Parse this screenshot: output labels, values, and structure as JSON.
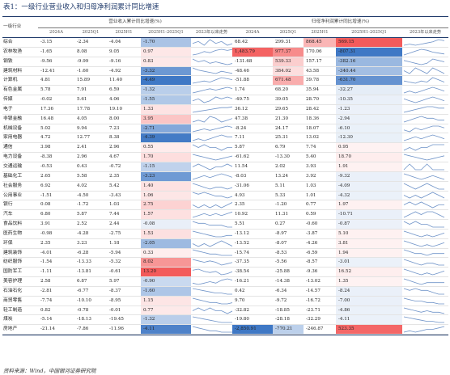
{
  "title": "表1：一级行业营业收入和归母净利润累计同比增速",
  "source": "资料来源：Wind，中国银河证券研究院",
  "header": {
    "industry_label": "一级行业",
    "group1_label": "营业收入累计同比增速(%)",
    "group2_label": "归母净利润累计同比增速(%)",
    "columns": [
      "2024A",
      "2025Q1",
      "2025H1",
      "2025H1-2025Q1",
      "2023年以来走势"
    ]
  },
  "colors": {
    "line": "#1f3a6b",
    "spark": "#6f93c8",
    "pos_strong": "#f35b5b",
    "neg_strong": "#3f78c5"
  },
  "rows": [
    {
      "name": "综合",
      "r": [
        "-3.15",
        "-2.34",
        "-4.04",
        "-1.70"
      ],
      "p": [
        "68.42",
        "299.31",
        "868.45",
        "569.15"
      ],
      "rd": -1.7,
      "pd": 569.15
    },
    {
      "name": "农林牧渔",
      "r": [
        "-1.65",
        "8.08",
        "9.05",
        "0.97"
      ],
      "p": [
        "1,483.79",
        "977.37",
        "170.06",
        "-807.31"
      ],
      "rd": 0.97,
      "pd": -807.31
    },
    {
      "name": "钢铁",
      "r": [
        "-9.56",
        "-9.99",
        "-9.16",
        "0.83"
      ],
      "p": [
        "-131.68",
        "539.33",
        "157.17",
        "-382.16"
      ],
      "rd": 0.83,
      "pd": -382.16
    },
    {
      "name": "建筑材料",
      "r": [
        "-12.41",
        "-1.60",
        "-4.92",
        "-3.32"
      ],
      "p": [
        "-48.46",
        "384.02",
        "43.58",
        "-340.44"
      ],
      "rd": -3.32,
      "pd": -340.44
    },
    {
      "name": "计算机",
      "r": [
        "4.81",
        "15.89",
        "11.40",
        "-4.49"
      ],
      "p": [
        "-51.88",
        "671.48",
        "39.78",
        "-631.70"
      ],
      "rd": -4.49,
      "pd": -631.7
    },
    {
      "name": "有色金属",
      "r": [
        "5.78",
        "7.91",
        "6.59",
        "-1.32"
      ],
      "p": [
        "1.74",
        "68.20",
        "35.94",
        "-32.27"
      ],
      "rd": -1.32,
      "pd": -32.27
    },
    {
      "name": "传媒",
      "r": [
        "-0.02",
        "5.61",
        "4.06",
        "-1.55"
      ],
      "p": [
        "-49.75",
        "39.05",
        "28.70",
        "-10.35"
      ],
      "rd": -1.55,
      "pd": -10.35
    },
    {
      "name": "电子",
      "r": [
        "17.36",
        "17.78",
        "19.10",
        "1.33"
      ],
      "p": [
        "36.12",
        "29.65",
        "28.42",
        "-1.23"
      ],
      "rd": 1.33,
      "pd": -1.23
    },
    {
      "name": "非银金融",
      "r": [
        "16.48",
        "4.05",
        "8.00",
        "3.95"
      ],
      "p": [
        "47.38",
        "21.30",
        "18.36",
        "-2.94"
      ],
      "rd": 3.95,
      "pd": -2.94
    },
    {
      "name": "机械设备",
      "r": [
        "5.02",
        "9.94",
        "7.23",
        "-2.71"
      ],
      "p": [
        "-8.24",
        "24.17",
        "18.07",
        "-6.10"
      ],
      "rd": -2.71,
      "pd": -6.1
    },
    {
      "name": "家用电器",
      "r": [
        "4.72",
        "12.77",
        "8.38",
        "-4.39"
      ],
      "p": [
        "7.11",
        "25.31",
        "13.02",
        "-12.30"
      ],
      "rd": -4.39,
      "pd": -12.3
    },
    {
      "name": "通信",
      "r": [
        "3.98",
        "2.41",
        "2.96",
        "0.55"
      ],
      "p": [
        "5.87",
        "6.79",
        "7.74",
        "0.95"
      ],
      "rd": 0.55,
      "pd": 0.95
    },
    {
      "name": "电力设备",
      "r": [
        "-8.38",
        "2.96",
        "4.67",
        "1.70"
      ],
      "p": [
        "-61.62",
        "-13.30",
        "5.40",
        "18.70"
      ],
      "rd": 1.7,
      "pd": 18.7
    },
    {
      "name": "交通运输",
      "r": [
        "-0.53",
        "0.43",
        "-0.72",
        "-1.15"
      ],
      "p": [
        "11.54",
        "2.02",
        "3.93",
        "1.91"
      ],
      "rd": -1.15,
      "pd": 1.91
    },
    {
      "name": "基础化工",
      "r": [
        "2.65",
        "5.58",
        "2.35",
        "-3.23"
      ],
      "p": [
        "-8.03",
        "13.24",
        "3.92",
        "-9.32"
      ],
      "rd": -3.23,
      "pd": -9.32
    },
    {
      "name": "社会服务",
      "r": [
        "6.92",
        "4.02",
        "5.42",
        "1.40"
      ],
      "p": [
        "-31.06",
        "5.11",
        "1.03",
        "-4.09"
      ],
      "rd": 1.4,
      "pd": -4.09
    },
    {
      "name": "公用事业",
      "r": [
        "-1.51",
        "-4.50",
        "-3.43",
        "1.06"
      ],
      "p": [
        "4.93",
        "5.33",
        "1.01",
        "-4.32"
      ],
      "rd": 1.06,
      "pd": -4.32
    },
    {
      "name": "银行",
      "r": [
        "0.08",
        "-1.72",
        "1.03",
        "2.75"
      ],
      "p": [
        "2.35",
        "-1.20",
        "0.77",
        "1.97"
      ],
      "rd": 2.75,
      "pd": 1.97
    },
    {
      "name": "汽车",
      "r": [
        "6.80",
        "5.87",
        "7.44",
        "1.57"
      ],
      "p": [
        "10.92",
        "11.31",
        "0.59",
        "-10.71"
      ],
      "rd": 1.57,
      "pd": -10.71
    },
    {
      "name": "食品饮料",
      "r": [
        "3.91",
        "2.52",
        "2.44",
        "-0.08"
      ],
      "p": [
        "5.51",
        "0.27",
        "-0.60",
        "-0.87"
      ],
      "rd": -0.08,
      "pd": -0.87
    },
    {
      "name": "医药生物",
      "r": [
        "-0.98",
        "-4.28",
        "-2.75",
        "1.53"
      ],
      "p": [
        "-13.12",
        "-8.97",
        "-3.87",
        "5.10"
      ],
      "rd": 1.53,
      "pd": 5.1
    },
    {
      "name": "环保",
      "r": [
        "2.35",
        "3.23",
        "1.18",
        "-2.05"
      ],
      "p": [
        "-13.52",
        "-8.07",
        "-4.26",
        "3.81"
      ],
      "rd": -2.05,
      "pd": 3.81
    },
    {
      "name": "建筑装饰",
      "r": [
        "-4.01",
        "-6.28",
        "-5.94",
        "0.33"
      ],
      "p": [
        "-15.74",
        "-8.53",
        "-6.59",
        "1.94"
      ],
      "rd": 0.33,
      "pd": 1.94
    },
    {
      "name": "纺织服饰",
      "r": [
        "-1.54",
        "-13.33",
        "-5.32",
        "8.02"
      ],
      "p": [
        "-37.35",
        "-5.56",
        "-8.57",
        "-3.01"
      ],
      "rd": 8.02,
      "pd": -3.01
    },
    {
      "name": "国防军工",
      "r": [
        "-1.11",
        "-13.81",
        "-0.61",
        "13.20"
      ],
      "p": [
        "-38.54",
        "-25.88",
        "-9.36",
        "16.52"
      ],
      "rd": 13.2,
      "pd": 16.52
    },
    {
      "name": "美容护理",
      "r": [
        "2.58",
        "6.87",
        "5.97",
        "-0.90"
      ],
      "p": [
        "-16.21",
        "-14.38",
        "-13.02",
        "1.35"
      ],
      "rd": -0.9,
      "pd": 1.35
    },
    {
      "name": "石油石化",
      "r": [
        "-2.81",
        "-6.77",
        "-8.37",
        "-1.60"
      ],
      "p": [
        "0.42",
        "-6.34",
        "-14.57",
        "-8.24"
      ],
      "rd": -1.6,
      "pd": -8.24
    },
    {
      "name": "商贸零售",
      "r": [
        "-7.74",
        "-10.10",
        "-8.95",
        "1.15"
      ],
      "p": [
        "9.70",
        "-9.72",
        "-16.72",
        "-7.00"
      ],
      "rd": 1.15,
      "pd": -7.0
    },
    {
      "name": "轻工制造",
      "r": [
        "0.82",
        "-0.78",
        "-0.01",
        "0.77"
      ],
      "p": [
        "-32.82",
        "-18.85",
        "-23.71",
        "-4.86"
      ],
      "rd": 0.77,
      "pd": -4.86
    },
    {
      "name": "煤炭",
      "r": [
        "-5.14",
        "-18.13",
        "-19.45",
        "-1.32"
      ],
      "p": [
        "-19.80",
        "-28.18",
        "-32.29",
        "-4.11"
      ],
      "rd": -1.32,
      "pd": -4.11
    },
    {
      "name": "房地产",
      "r": [
        "-21.14",
        "-7.86",
        "-11.96",
        "-4.11"
      ],
      "p": [
        "-2,850.91",
        "-770.21",
        "-246.87",
        "523.35"
      ],
      "rd": -4.11,
      "pd": 523.35
    }
  ],
  "sparklines": {
    "revenue": [
      [
        2,
        3,
        1,
        4,
        2,
        3,
        1,
        2
      ],
      [
        1,
        2,
        4,
        3,
        5,
        6,
        5,
        6
      ],
      [
        5,
        3,
        4,
        2,
        3,
        2,
        1,
        2
      ],
      [
        6,
        4,
        3,
        2,
        1,
        3,
        2,
        1
      ],
      [
        2,
        3,
        4,
        3,
        5,
        7,
        6,
        5
      ],
      [
        2,
        3,
        4,
        5,
        4,
        5,
        6,
        5
      ],
      [
        3,
        4,
        2,
        3,
        5,
        4,
        5,
        4
      ],
      [
        1,
        2,
        3,
        4,
        5,
        6,
        6,
        7
      ],
      [
        3,
        4,
        3,
        6,
        5,
        3,
        4,
        5
      ],
      [
        2,
        3,
        4,
        3,
        4,
        5,
        6,
        5
      ],
      [
        3,
        4,
        3,
        4,
        5,
        6,
        5,
        5
      ],
      [
        4,
        3,
        4,
        3,
        3,
        2,
        3,
        3
      ],
      [
        6,
        5,
        4,
        3,
        2,
        3,
        4,
        5
      ],
      [
        3,
        4,
        3,
        2,
        3,
        3,
        4,
        3
      ],
      [
        2,
        3,
        4,
        3,
        4,
        5,
        4,
        3
      ],
      [
        6,
        5,
        4,
        3,
        4,
        4,
        3,
        4
      ],
      [
        4,
        3,
        4,
        3,
        2,
        2,
        1,
        2
      ],
      [
        3,
        2,
        3,
        2,
        3,
        2,
        3,
        4
      ],
      [
        3,
        4,
        5,
        4,
        5,
        4,
        5,
        6
      ],
      [
        5,
        4,
        4,
        3,
        3,
        3,
        2,
        2
      ],
      [
        6,
        5,
        4,
        3,
        2,
        2,
        3,
        3
      ],
      [
        4,
        3,
        4,
        3,
        4,
        5,
        4,
        3
      ],
      [
        5,
        4,
        3,
        2,
        2,
        1,
        1,
        1
      ],
      [
        5,
        4,
        3,
        4,
        3,
        1,
        2,
        3
      ],
      [
        5,
        6,
        4,
        3,
        4,
        1,
        2,
        4
      ],
      [
        3,
        2,
        3,
        4,
        3,
        5,
        6,
        5
      ],
      [
        6,
        5,
        4,
        3,
        2,
        2,
        1,
        1
      ],
      [
        5,
        4,
        3,
        2,
        2,
        1,
        1,
        2
      ],
      [
        3,
        4,
        3,
        4,
        3,
        3,
        2,
        3
      ],
      [
        6,
        5,
        4,
        3,
        2,
        1,
        1,
        1
      ],
      [
        6,
        5,
        4,
        3,
        3,
        2,
        2,
        2
      ]
    ],
    "profit": [
      [
        1,
        2,
        1,
        2,
        3,
        4,
        6,
        5
      ],
      [
        1,
        3,
        5,
        7,
        6,
        4,
        3,
        2
      ],
      [
        4,
        3,
        2,
        1,
        2,
        5,
        4,
        3
      ],
      [
        3,
        2,
        4,
        3,
        2,
        4,
        3,
        2
      ],
      [
        3,
        2,
        1,
        3,
        2,
        6,
        4,
        2
      ],
      [
        2,
        3,
        2,
        3,
        4,
        5,
        4,
        3
      ],
      [
        4,
        3,
        2,
        3,
        4,
        5,
        4,
        3
      ],
      [
        1,
        2,
        3,
        4,
        5,
        5,
        4,
        4
      ],
      [
        2,
        3,
        4,
        5,
        4,
        4,
        3,
        3
      ],
      [
        3,
        2,
        4,
        3,
        4,
        5,
        5,
        4
      ],
      [
        2,
        3,
        4,
        3,
        4,
        5,
        4,
        3
      ],
      [
        3,
        4,
        3,
        4,
        4,
        5,
        5,
        5
      ],
      [
        6,
        5,
        4,
        3,
        2,
        3,
        4,
        5
      ],
      [
        3,
        4,
        3,
        3,
        4,
        3,
        3,
        3
      ],
      [
        5,
        4,
        3,
        2,
        3,
        4,
        3,
        2
      ],
      [
        4,
        3,
        2,
        3,
        4,
        3,
        2,
        2
      ],
      [
        4,
        3,
        4,
        3,
        4,
        5,
        4,
        3
      ],
      [
        3,
        4,
        3,
        4,
        3,
        2,
        3,
        3
      ],
      [
        3,
        4,
        5,
        4,
        5,
        5,
        4,
        3
      ],
      [
        4,
        3,
        4,
        3,
        3,
        2,
        2,
        2
      ],
      [
        5,
        4,
        3,
        2,
        3,
        2,
        3,
        4
      ],
      [
        5,
        4,
        3,
        2,
        3,
        2,
        3,
        4
      ],
      [
        5,
        4,
        3,
        3,
        2,
        3,
        3,
        3
      ],
      [
        5,
        4,
        3,
        2,
        3,
        3,
        2,
        2
      ],
      [
        5,
        4,
        3,
        2,
        3,
        2,
        3,
        4
      ],
      [
        5,
        4,
        3,
        2,
        3,
        3,
        3,
        3
      ],
      [
        4,
        3,
        4,
        3,
        3,
        2,
        1,
        1
      ],
      [
        5,
        4,
        3,
        3,
        2,
        2,
        1,
        1
      ],
      [
        5,
        4,
        3,
        2,
        3,
        2,
        2,
        1
      ],
      [
        6,
        5,
        4,
        3,
        2,
        2,
        1,
        1
      ],
      [
        1,
        2,
        1,
        2,
        3,
        3,
        4,
        5
      ]
    ]
  }
}
